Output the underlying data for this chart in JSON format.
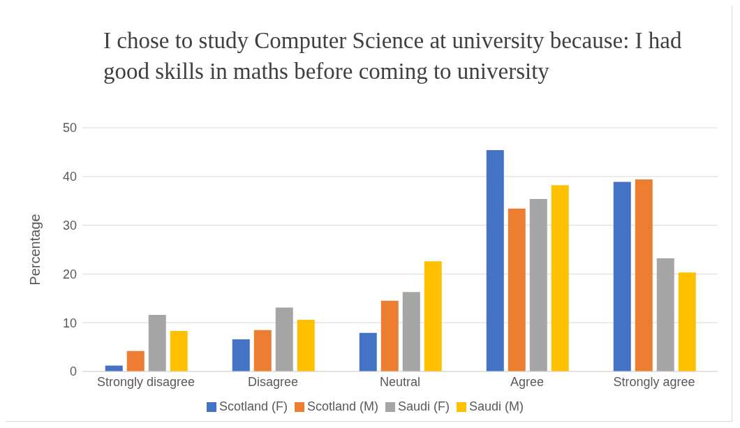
{
  "chart_data": {
    "type": "bar",
    "title": "I chose to study Computer Science at university because: I had good skills in maths before coming to university",
    "ylabel": "Percentage",
    "categories": [
      "Strongly disagree",
      "Disagree",
      "Neutral",
      "Agree",
      "Strongly agree"
    ],
    "series": [
      {
        "name": "Scotland (F)",
        "color": "#4472c4",
        "values": [
          1.2,
          6.6,
          7.9,
          45.4,
          38.9
        ]
      },
      {
        "name": "Scotland (M)",
        "color": "#ed7d31",
        "values": [
          4.2,
          8.5,
          14.5,
          33.4,
          39.4
        ]
      },
      {
        "name": "Saudi (F)",
        "color": "#a5a5a5",
        "values": [
          11.6,
          13.1,
          16.3,
          35.4,
          23.2
        ]
      },
      {
        "name": "Saudi (M)",
        "color": "#ffc000",
        "values": [
          8.3,
          10.6,
          22.6,
          38.2,
          20.3
        ]
      }
    ],
    "ylim": [
      0,
      50
    ],
    "yticks": [
      0,
      10,
      20,
      30,
      40,
      50
    ],
    "grid": "y",
    "legend": "bottom"
  }
}
